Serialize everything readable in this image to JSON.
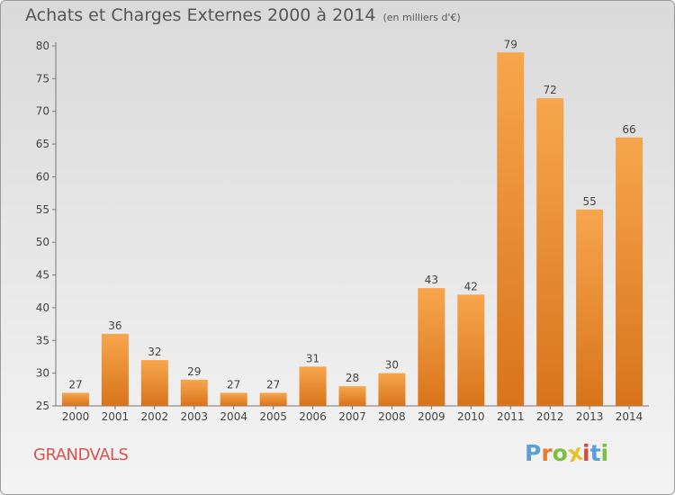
{
  "header": {
    "title": "Achats et Charges Externes 2000 à 2014",
    "unit": "(en milliers d'€)"
  },
  "footer": {
    "commune": "GRANDVALS",
    "logo": "Proxiti"
  },
  "colors": {
    "bar_light": "#f7a64d",
    "bar_dark": "#d8741b",
    "commune": "#d9534f",
    "logo_letters": [
      "#5aa0d8",
      "#e87b2a",
      "#7cbf3f",
      "#e8c12a",
      "#d84a3a",
      "#5aa0d8",
      "#7cbf3f"
    ]
  },
  "chart_data": {
    "type": "bar",
    "title": "Achats et Charges Externes 2000 à 2014",
    "subtitle": "(en milliers d'€)",
    "categories": [
      "2000",
      "2001",
      "2002",
      "2003",
      "2004",
      "2005",
      "2006",
      "2007",
      "2008",
      "2009",
      "2010",
      "2011",
      "2012",
      "2013",
      "2014"
    ],
    "values": [
      27,
      36,
      32,
      29,
      27,
      27,
      31,
      28,
      30,
      43,
      42,
      79,
      72,
      55,
      66
    ],
    "ylim": [
      25,
      80
    ],
    "yticks": [
      25,
      30,
      35,
      40,
      45,
      50,
      55,
      60,
      65,
      70,
      75,
      80
    ],
    "grid": false,
    "legend": false
  }
}
